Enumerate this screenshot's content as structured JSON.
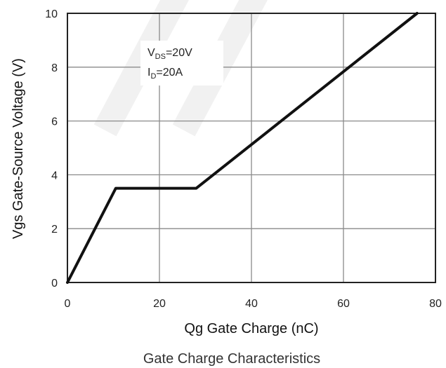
{
  "chart_data": {
    "type": "line",
    "title": "",
    "caption": "Gate Charge Characteristics",
    "xlabel": "Qg Gate Charge (nC)",
    "ylabel": "Vgs Gate-Source Voltage (V)",
    "xlim": [
      0,
      80
    ],
    "ylim": [
      0,
      10
    ],
    "x_ticks": [
      "0",
      "20",
      "40",
      "60",
      "80"
    ],
    "y_ticks": [
      "0",
      "2",
      "4",
      "6",
      "8",
      "10"
    ],
    "grid": true,
    "series": [
      {
        "x": [
          0,
          10.5,
          28,
          76
        ],
        "y": [
          0,
          3.5,
          3.5,
          10
        ]
      }
    ],
    "annotations": {
      "line1_main": "V",
      "line1_sub": "DS",
      "line1_rest": "=20V",
      "line2_main": "I",
      "line2_sub": "D",
      "line2_rest": "=20A"
    }
  }
}
